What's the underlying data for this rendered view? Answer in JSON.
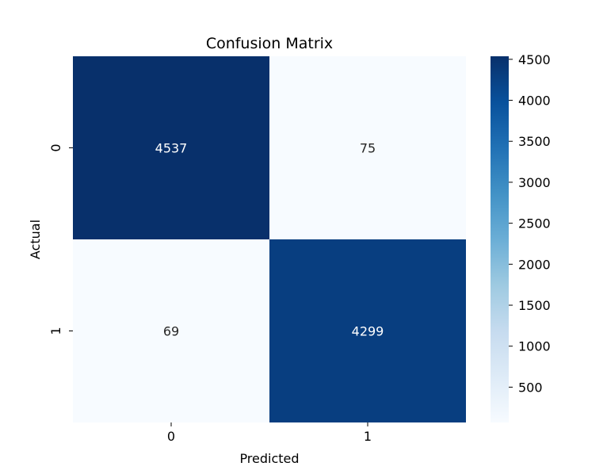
{
  "chart_data": {
    "type": "heatmap",
    "title": "Confusion Matrix",
    "xlabel": "Predicted",
    "ylabel": "Actual",
    "x_categories": [
      "0",
      "1"
    ],
    "y_categories": [
      "0",
      "1"
    ],
    "matrix": [
      [
        4537,
        75
      ],
      [
        69,
        4299
      ]
    ],
    "colormap": "Blues",
    "value_range": [
      69,
      4537
    ],
    "colorbar_ticks": [
      500,
      1000,
      1500,
      2000,
      2500,
      3000,
      3500,
      4000,
      4500
    ],
    "grid": false,
    "legend": "colorbar-right"
  }
}
